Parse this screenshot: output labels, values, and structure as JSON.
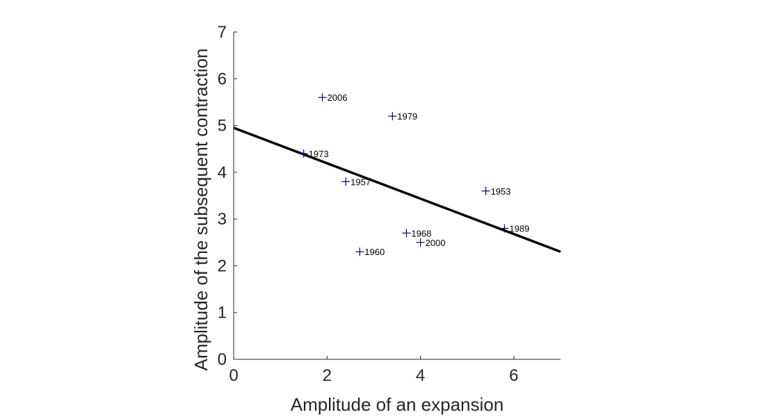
{
  "chart_data": {
    "type": "scatter",
    "xlabel": "Amplitude of an expansion",
    "ylabel": "Amplitude of the subsequent contraction",
    "xlim": [
      0,
      7
    ],
    "ylim": [
      0,
      7
    ],
    "x_ticks": [
      0,
      2,
      4,
      6
    ],
    "y_ticks": [
      0,
      1,
      2,
      3,
      4,
      5,
      6,
      7
    ],
    "grid": false,
    "points": [
      {
        "label": "2006",
        "x": 1.9,
        "y": 5.6
      },
      {
        "label": "1979",
        "x": 3.4,
        "y": 5.2
      },
      {
        "label": "1973",
        "x": 1.5,
        "y": 4.4
      },
      {
        "label": "1957",
        "x": 2.4,
        "y": 3.8
      },
      {
        "label": "1953",
        "x": 5.4,
        "y": 3.6
      },
      {
        "label": "1989",
        "x": 5.8,
        "y": 2.8
      },
      {
        "label": "1968",
        "x": 3.7,
        "y": 2.7
      },
      {
        "label": "2000",
        "x": 4.0,
        "y": 2.5
      },
      {
        "label": "1960",
        "x": 2.7,
        "y": 2.3
      }
    ],
    "fit_line": {
      "x": [
        0,
        7
      ],
      "y": [
        4.95,
        2.3
      ]
    },
    "colors": {
      "marker": "#00007f",
      "fit_line": "#000000",
      "axes": "#262626"
    }
  }
}
